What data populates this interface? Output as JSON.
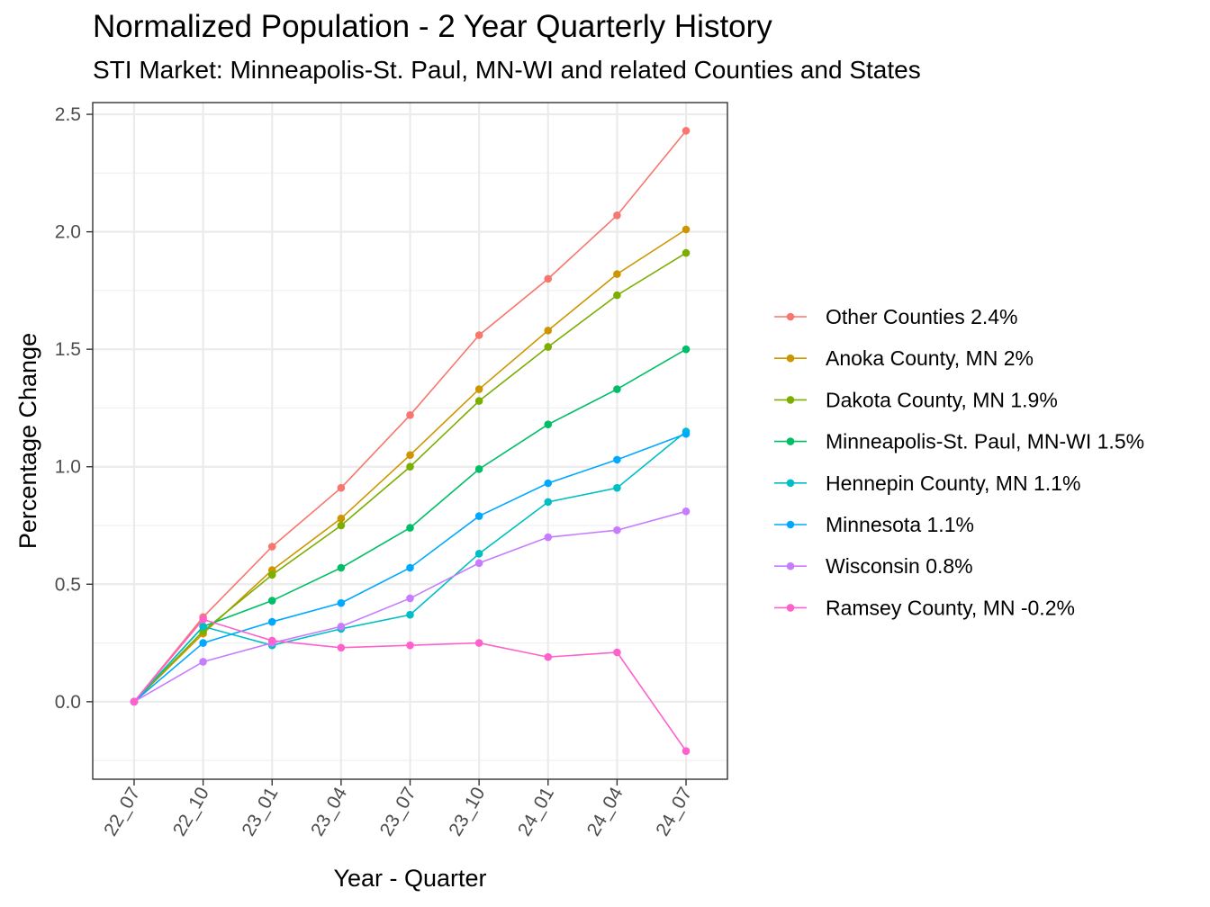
{
  "chart_data": {
    "type": "line",
    "title": "Normalized Population - 2 Year Quarterly History",
    "subtitle": "STI Market: Minneapolis-St. Paul, MN-WI and related Counties and States",
    "xlabel": "Year - Quarter",
    "ylabel": "Percentage Change",
    "categories": [
      "22_07",
      "22_10",
      "23_01",
      "23_04",
      "23_07",
      "23_10",
      "24_01",
      "24_04",
      "24_07"
    ],
    "ylim": [
      -0.33,
      2.55
    ],
    "yticks": [
      0.0,
      0.5,
      1.0,
      1.5,
      2.0,
      2.5
    ],
    "ytick_labels": [
      "0.0",
      "0.5",
      "1.0",
      "1.5",
      "2.0",
      "2.5"
    ],
    "grid": true,
    "legend_position": "right",
    "series": [
      {
        "name": "Other Counties 2.4%",
        "color": "#F8766D",
        "values": [
          0,
          0.36,
          0.66,
          0.91,
          1.22,
          1.56,
          1.8,
          2.07,
          2.43
        ]
      },
      {
        "name": "Anoka County, MN 2%",
        "color": "#CD9600",
        "values": [
          0,
          0.29,
          0.56,
          0.78,
          1.05,
          1.33,
          1.58,
          1.82,
          2.01
        ]
      },
      {
        "name": "Dakota County, MN 1.9%",
        "color": "#7CAE00",
        "values": [
          0,
          0.3,
          0.54,
          0.75,
          1.0,
          1.28,
          1.51,
          1.73,
          1.91
        ]
      },
      {
        "name": "Minneapolis-St. Paul, MN-WI 1.5%",
        "color": "#00BE67",
        "values": [
          0,
          0.32,
          0.43,
          0.57,
          0.74,
          0.99,
          1.18,
          1.33,
          1.5
        ]
      },
      {
        "name": "Hennepin County, MN 1.1%",
        "color": "#00BFC4",
        "values": [
          0,
          0.32,
          0.24,
          0.31,
          0.37,
          0.63,
          0.85,
          0.91,
          1.15
        ]
      },
      {
        "name": "Minnesota 1.1%",
        "color": "#00A9FF",
        "values": [
          0,
          0.25,
          0.34,
          0.42,
          0.57,
          0.79,
          0.93,
          1.03,
          1.14
        ]
      },
      {
        "name": "Wisconsin 0.8%",
        "color": "#C77CFF",
        "values": [
          0,
          0.17,
          0.25,
          0.32,
          0.44,
          0.59,
          0.7,
          0.73,
          0.81
        ]
      },
      {
        "name": "Ramsey County, MN -0.2%",
        "color": "#FF61CC",
        "values": [
          0,
          0.35,
          0.26,
          0.23,
          0.24,
          0.25,
          0.19,
          0.21,
          -0.21
        ]
      }
    ]
  }
}
